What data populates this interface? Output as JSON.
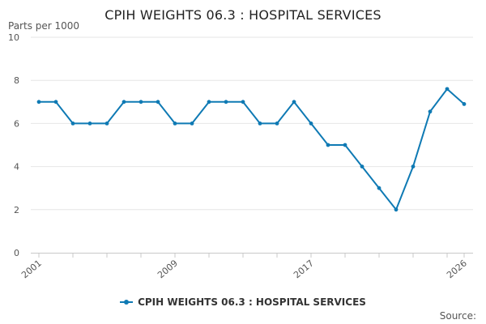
{
  "chart_data": {
    "type": "line",
    "title": "CPIH WEIGHTS 06.3 : HOSPITAL SERVICES",
    "ylabel": "Parts per 1000",
    "xlabel": "",
    "source_label": "Source:",
    "x": [
      2001,
      2002,
      2003,
      2004,
      2005,
      2006,
      2007,
      2008,
      2009,
      2010,
      2011,
      2012,
      2013,
      2014,
      2015,
      2016,
      2017,
      2018,
      2019,
      2020,
      2021,
      2022,
      2023,
      2024,
      2025,
      2026
    ],
    "series": [
      {
        "name": "CPIH WEIGHTS 06.3 : HOSPITAL SERVICES",
        "values": [
          7,
          7,
          6,
          6,
          6,
          7,
          7,
          7,
          6,
          6,
          7,
          7,
          7,
          6,
          6,
          7,
          6,
          5,
          5,
          4,
          3,
          2,
          4,
          6.55,
          7.6,
          6.9
        ],
        "color": "#0f7ab4"
      }
    ],
    "ylim": [
      0,
      10
    ],
    "yticks": [
      0,
      2,
      4,
      6,
      8,
      10
    ],
    "xlim": [
      2001,
      2026
    ],
    "xtick_labels": [
      "2001",
      "2009",
      "2017",
      "2026"
    ],
    "xtick_values": [
      2001,
      2009,
      2017,
      2026
    ],
    "grid": true,
    "legend_position": "bottom"
  }
}
